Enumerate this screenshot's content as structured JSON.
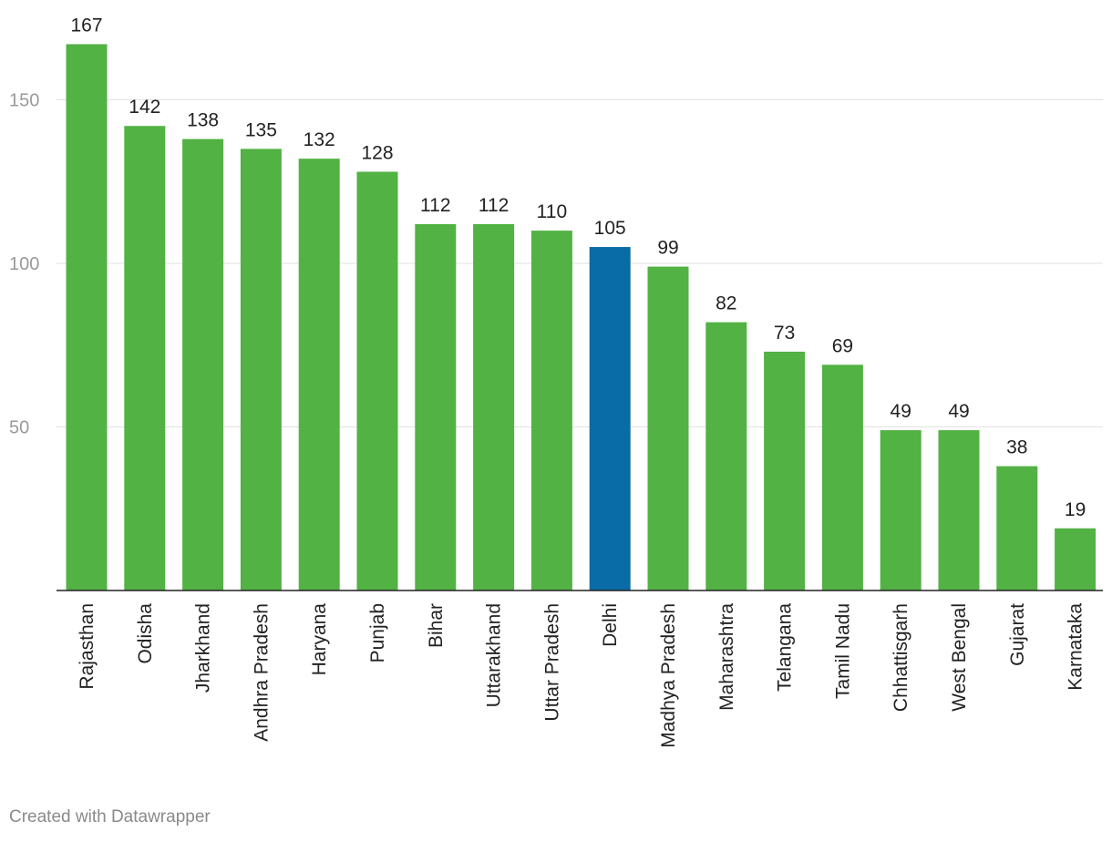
{
  "chart_data": {
    "type": "bar",
    "title": "",
    "xlabel": "",
    "ylabel": "",
    "ylim": [
      0,
      170
    ],
    "yticks": [
      50,
      100,
      150
    ],
    "grid": true,
    "categories": [
      "Rajasthan",
      "Odisha",
      "Jharkhand",
      "Andhra Pradesh",
      "Haryana",
      "Punjab",
      "Bihar",
      "Uttarakhand",
      "Uttar Pradesh",
      "Delhi",
      "Madhya Pradesh",
      "Maharashtra",
      "Telangana",
      "Tamil Nadu",
      "Chhattisgarh",
      "West Bengal",
      "Gujarat",
      "Karnataka"
    ],
    "values": [
      167,
      142,
      138,
      135,
      132,
      128,
      112,
      112,
      110,
      105,
      99,
      82,
      73,
      69,
      49,
      49,
      38,
      19
    ],
    "highlight": "Delhi",
    "colors": {
      "default": "#52b244",
      "highlight": "#0a6ca6"
    }
  },
  "footer": {
    "credit": "Created with Datawrapper"
  }
}
